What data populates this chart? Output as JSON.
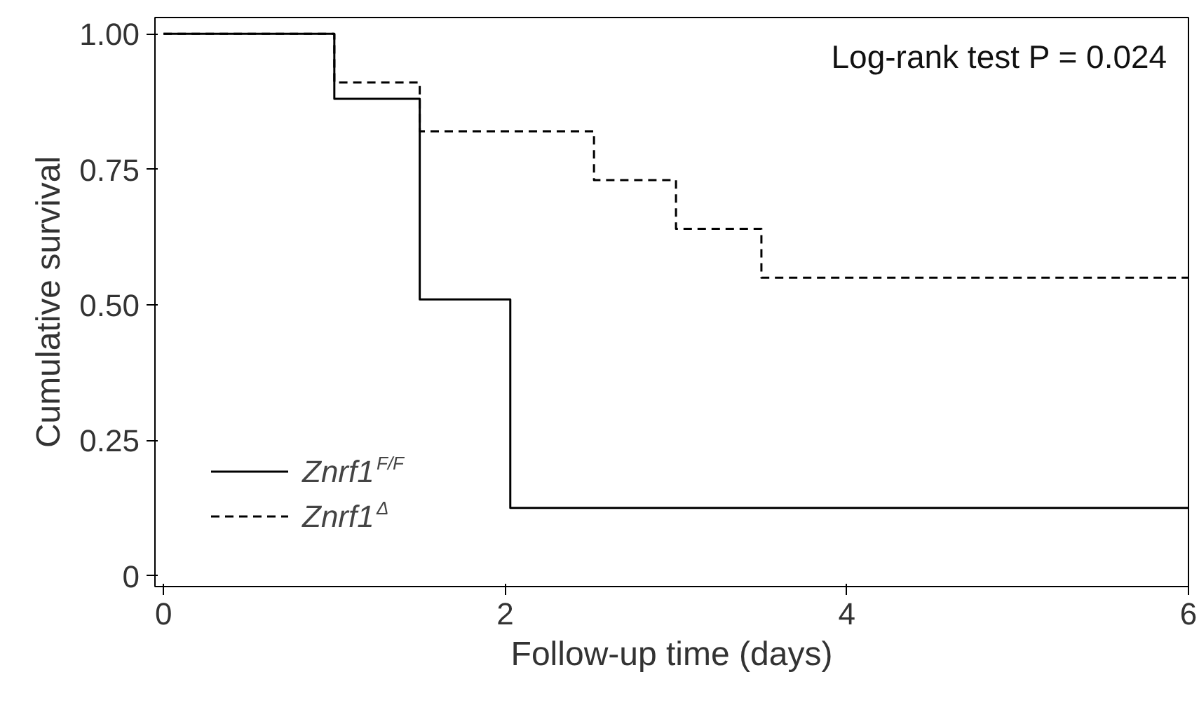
{
  "chart_data": {
    "type": "step",
    "xlabel": "Follow-up time (days)",
    "ylabel": "Cumulative survival",
    "series": [
      {
        "name": "Znrf1$^{F/F}$",
        "color": "#000000",
        "line_style": "solid",
        "x": [
          0,
          1,
          1.5,
          2.03,
          6
        ],
        "values": [
          1,
          0.88,
          0.51,
          0.125,
          0.125
        ]
      },
      {
        "name": "Znrf1$^{Δ}$",
        "color": "#000000",
        "line_style": "dashed",
        "x": [
          0,
          1,
          1.5,
          2.52,
          3,
          3.5,
          6
        ],
        "values": [
          1,
          0.91,
          0.82,
          0.73,
          0.64,
          0.55,
          0.55
        ]
      }
    ],
    "xlim": [
      -0.05,
      6
    ],
    "ylim": [
      -0.02,
      1.03
    ],
    "xticks": [
      0,
      2,
      4,
      6
    ],
    "yticks": [
      {
        "value": 0,
        "label": "0"
      },
      {
        "value": 0.25,
        "label": "0.25"
      },
      {
        "value": 0.5,
        "label": "0.50"
      },
      {
        "value": 0.75,
        "label": "0.75"
      },
      {
        "value": 1,
        "label": "1.00"
      }
    ],
    "annotations": [
      "Log-rank test P = 0.024"
    ],
    "grid": false,
    "legend": "bottom left"
  }
}
